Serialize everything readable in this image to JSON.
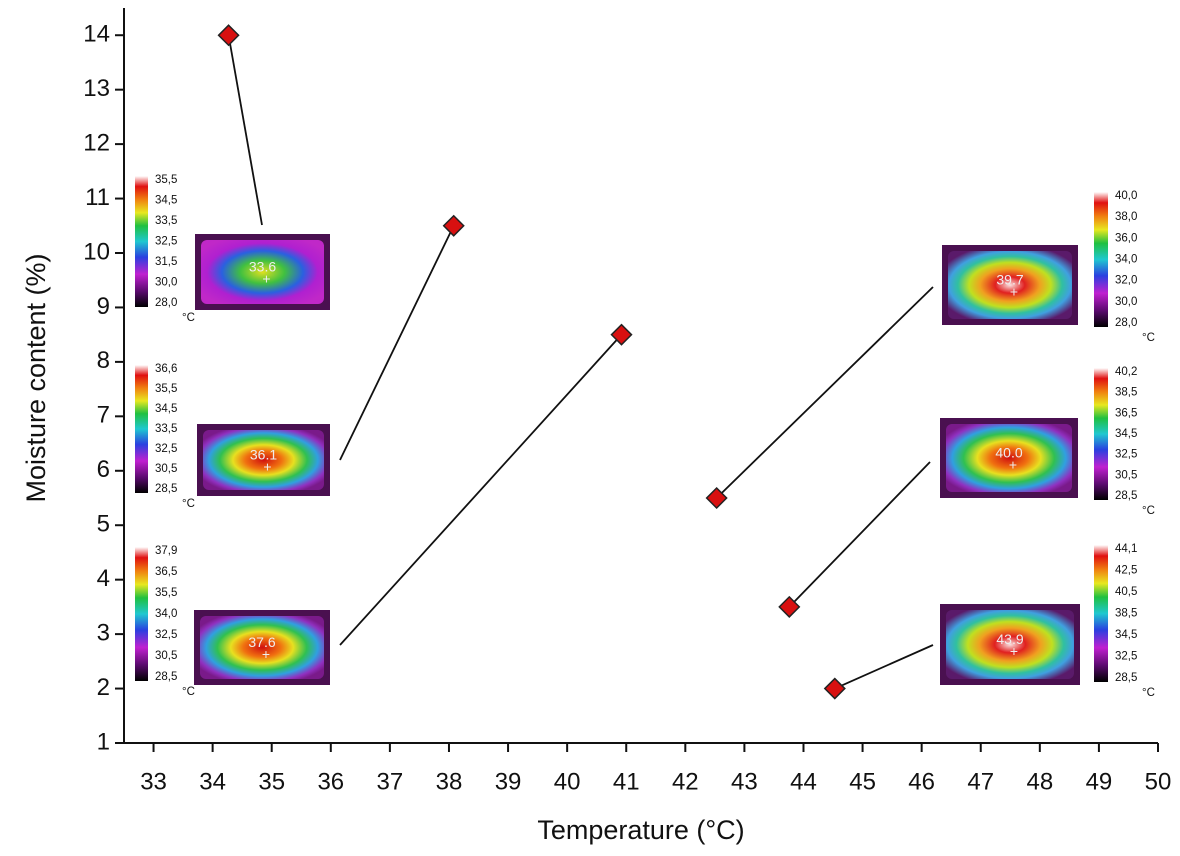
{
  "chart_data": {
    "type": "scatter",
    "x_label": "Temperature (°C)",
    "y_label": "Moisture content (%)",
    "x": [
      34.27,
      38.08,
      40.92,
      42.53,
      43.76,
      44.53
    ],
    "series": [
      {
        "values": [
          14,
          10.5,
          8.5,
          5.5,
          3.5,
          2
        ],
        "color": "#d81010"
      }
    ],
    "xlim": [
      32.5,
      50
    ],
    "ylim": [
      1,
      14.5
    ],
    "xticks": [
      33,
      34,
      35,
      36,
      37,
      38,
      39,
      40,
      41,
      42,
      43,
      44,
      45,
      46,
      47,
      48,
      49,
      50
    ],
    "yticks": [
      1,
      2,
      3,
      4,
      5,
      6,
      7,
      8,
      9,
      10,
      11,
      12,
      13,
      14
    ]
  },
  "insets": [
    {
      "center_label": "33.6",
      "scale_labels": [
        "35,5",
        "34,5",
        "33,5",
        "32,5",
        "31,5",
        "30,0",
        "28,0"
      ],
      "unit": "°C"
    },
    {
      "center_label": "36.1",
      "scale_labels": [
        "36,6",
        "35,5",
        "34,5",
        "33,5",
        "32,5",
        "30,5",
        "28,5"
      ],
      "unit": "°C"
    },
    {
      "center_label": "37.6",
      "scale_labels": [
        "37,9",
        "36,5",
        "35,5",
        "34,0",
        "32,5",
        "30,5",
        "28,5"
      ],
      "unit": "°C"
    },
    {
      "center_label": "39.7",
      "scale_labels": [
        "40,0",
        "38,0",
        "36,0",
        "34,0",
        "32,0",
        "30,0",
        "28,0"
      ],
      "unit": "°C"
    },
    {
      "center_label": "40.0",
      "scale_labels": [
        "40,2",
        "38,5",
        "36,5",
        "34,5",
        "32,5",
        "30,5",
        "28,5"
      ],
      "unit": "°C"
    },
    {
      "center_label": "43.9",
      "scale_labels": [
        "44,1",
        "42,5",
        "40,5",
        "38,5",
        "34,5",
        "32,5",
        "28,5"
      ],
      "unit": "°C"
    }
  ]
}
